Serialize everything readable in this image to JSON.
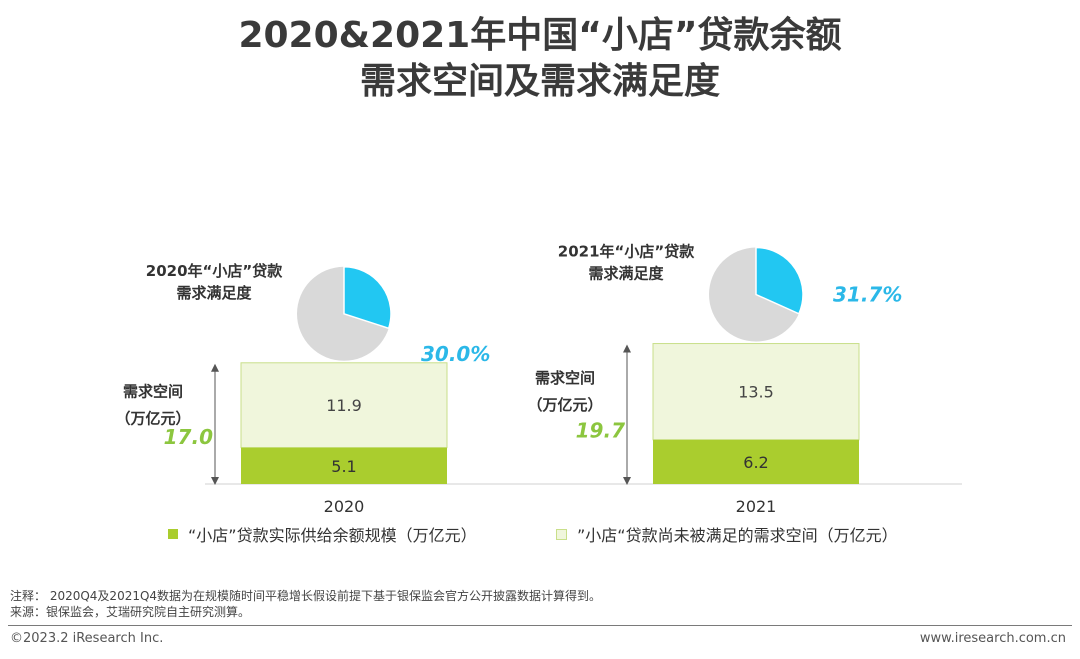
{
  "title": {
    "line1": "2020&2021年中国“小店”贷款余额",
    "line2": "需求空间及需求满足度"
  },
  "colors": {
    "bottom": "#aacd2e",
    "top": "#f0f6dc",
    "top_border": "#c9df8a",
    "pie_highlight": "#22c7f2",
    "pie_rest": "#d9d9d9",
    "total_text": "#8cc63f",
    "percent_text": "#2bb8e8"
  },
  "chart_data": {
    "type": "bar",
    "stacked": true,
    "categories": [
      "2020",
      "2021"
    ],
    "series": [
      {
        "name": "“小店”贷款实际供给余额规模（万亿元）",
        "values": [
          5.1,
          6.2
        ]
      },
      {
        "name": "”小店“贷款尚未被满足的需求空间（万亿元）",
        "values": [
          11.9,
          13.5
        ]
      }
    ],
    "totals": [
      "17.0",
      "19.7"
    ],
    "value_labels": {
      "bottom": [
        "5.1",
        "6.2"
      ],
      "top": [
        "11.9",
        "13.5"
      ]
    },
    "ylabel": [
      "需求空间",
      "（万亿元）"
    ],
    "ylim": [
      0,
      24
    ],
    "pies": [
      {
        "title": [
          "2020年“小店”贷款",
          "需求满足度"
        ],
        "percent": 30.0,
        "label": "30.0%"
      },
      {
        "title": [
          "2021年“小店”贷款",
          "需求满足度"
        ],
        "percent": 31.7,
        "label": "31.7%"
      }
    ]
  },
  "legend": {
    "items": [
      "“小店”贷款实际供给余额规模（万亿元）",
      "”小店“贷款尚未被满足的需求空间（万亿元）"
    ]
  },
  "notes": {
    "note": "注释：  2020Q4及2021Q4数据为在规模随时间平稳增长假设前提下基于银保监会官方公开披露数据计算得到。",
    "source": "来源：银保监会，艾瑞研究院自主研究测算。"
  },
  "footer": {
    "copyright": "©2023.2 iResearch Inc.",
    "website": "www.iresearch.com.cn"
  }
}
